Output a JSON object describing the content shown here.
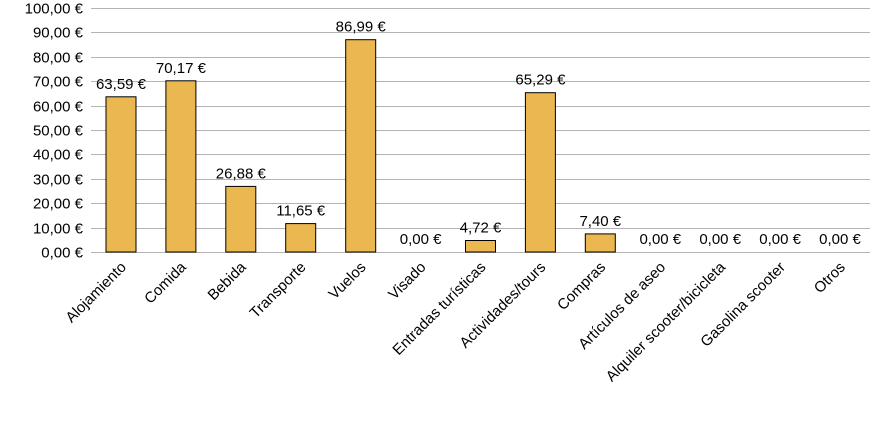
{
  "chart_data": {
    "type": "bar",
    "categories": [
      "Alojamiento",
      "Comida",
      "Bebida",
      "Transporte",
      "Vuelos",
      "Visado",
      "Entradas turísticas",
      "Actividades/tours",
      "Compras",
      "Artículos de aseo",
      "Alquiler scooter/bicicleta",
      "Gasolina scooter",
      "Otros"
    ],
    "values": [
      63.59,
      70.17,
      26.88,
      11.65,
      86.99,
      0,
      4.72,
      65.29,
      7.4,
      0,
      0,
      0,
      0
    ],
    "data_labels": [
      "63,59 €",
      "70,17 €",
      "26,88 €",
      "11,65 €",
      "86,99 €",
      "0,00 €",
      "4,72 €",
      "65,29 €",
      "7,40 €",
      "0,00 €",
      "0,00 €",
      "0,00 €",
      "0,00 €"
    ],
    "y_ticks": [
      0,
      10,
      20,
      30,
      40,
      50,
      60,
      70,
      80,
      90,
      100
    ],
    "y_tick_labels": [
      "0,00 €",
      "10,00 €",
      "20,00 €",
      "30,00 €",
      "40,00 €",
      "50,00 €",
      "60,00 €",
      "70,00 €",
      "80,00 €",
      "90,00 €",
      "100,00 €"
    ],
    "ylim": [
      0,
      100
    ],
    "grid": true,
    "legend": "none",
    "bar_color": "#ebb751"
  }
}
